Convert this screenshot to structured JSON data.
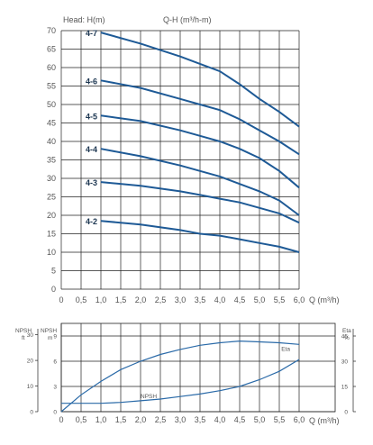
{
  "chart_data": [
    {
      "type": "line",
      "title": "Q-H (m³/h-m)",
      "ylabel": "Head: H(m)",
      "xlabel": "Q (m³/h)",
      "xlim": [
        0,
        6
      ],
      "ylim": [
        0,
        70
      ],
      "xticks": [
        "0",
        "0,5",
        "1,0",
        "1,5",
        "2,0",
        "2,5",
        "3,0",
        "3,5",
        "4,0",
        "4,5",
        "5,0",
        "5,5",
        "6,0"
      ],
      "yticks": [
        "0",
        "5",
        "10",
        "15",
        "20",
        "25",
        "30",
        "35",
        "40",
        "45",
        "50",
        "55",
        "60",
        "65",
        "70"
      ],
      "grid": true,
      "series": [
        {
          "name": "4-7",
          "x": [
            1.0,
            2.0,
            3.0,
            3.5,
            4.0,
            4.5,
            5.0,
            5.5,
            6.0
          ],
          "y": [
            69.5,
            66.5,
            63,
            61,
            59,
            55.5,
            51.5,
            48,
            44
          ]
        },
        {
          "name": "4-6",
          "x": [
            1.0,
            2.0,
            3.0,
            3.5,
            4.0,
            4.5,
            5.0,
            5.5,
            6.0
          ],
          "y": [
            56.5,
            54.5,
            51.5,
            50,
            48.5,
            46,
            43,
            40,
            36.5
          ]
        },
        {
          "name": "4-5",
          "x": [
            1.0,
            2.0,
            3.0,
            3.5,
            4.0,
            4.5,
            5.0,
            5.5,
            6.0
          ],
          "y": [
            47,
            45.5,
            43,
            41.5,
            40,
            38,
            35.5,
            32,
            27.5
          ]
        },
        {
          "name": "4-4",
          "x": [
            1.0,
            2.0,
            3.0,
            3.5,
            4.0,
            4.5,
            5.0,
            5.5,
            6.0
          ],
          "y": [
            38,
            36,
            33.5,
            32,
            30.5,
            28.5,
            26.5,
            24,
            20
          ]
        },
        {
          "name": "4-3",
          "x": [
            1.0,
            2.0,
            3.0,
            3.5,
            4.0,
            4.5,
            5.0,
            5.5,
            6.0
          ],
          "y": [
            29,
            28,
            26.5,
            25.5,
            24.5,
            23.5,
            22,
            20.5,
            18
          ]
        },
        {
          "name": "4-2",
          "x": [
            1.0,
            2.0,
            3.0,
            3.5,
            4.0,
            4.5,
            5.0,
            5.5,
            6.0
          ],
          "y": [
            18.5,
            17.5,
            16,
            15,
            14.5,
            13.5,
            12.5,
            11.5,
            10
          ]
        }
      ]
    },
    {
      "type": "line",
      "xlabel": "Q (m³/h)",
      "xlim": [
        0,
        6
      ],
      "xticks": [
        "0",
        "0,5",
        "1,0",
        "1,5",
        "2,0",
        "2,5",
        "3,0",
        "3,5",
        "4,0",
        "4,5",
        "5,0",
        "5,5",
        "6,0"
      ],
      "axes": {
        "npsh_ft": {
          "label": "NPSH",
          "unit": "ft",
          "ticks": [
            "0",
            "10",
            "20",
            "30"
          ]
        },
        "npsh_m": {
          "label": "NPSH",
          "unit": "m",
          "ticks": [
            "0",
            "3",
            "6",
            "9"
          ],
          "range": [
            0,
            10.5
          ]
        },
        "eta": {
          "label": "Eta",
          "unit": "%",
          "ticks": [
            "0",
            "15",
            "30",
            "45"
          ],
          "range": [
            0,
            52.5
          ]
        }
      },
      "grid": true,
      "series": [
        {
          "name": "Eta",
          "axis": "eta",
          "x": [
            0,
            0.5,
            1.0,
            1.5,
            2.0,
            2.5,
            3.0,
            3.5,
            4.0,
            4.5,
            5.0,
            5.5,
            6.0
          ],
          "y": [
            0,
            10,
            18,
            25,
            30,
            34,
            37,
            39.5,
            41,
            42,
            41.5,
            41,
            40
          ]
        },
        {
          "name": "NPSH",
          "axis": "npsh_m",
          "x": [
            0,
            0.5,
            1.0,
            1.5,
            2.0,
            2.5,
            3.0,
            3.5,
            4.0,
            4.5,
            5.0,
            5.5,
            6.0
          ],
          "y": [
            1.0,
            1.0,
            1.0,
            1.1,
            1.3,
            1.5,
            1.8,
            2.1,
            2.5,
            3.0,
            3.8,
            4.8,
            6.2
          ]
        }
      ]
    }
  ]
}
